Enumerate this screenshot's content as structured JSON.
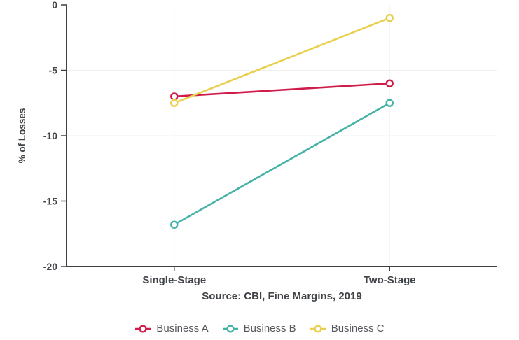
{
  "chart_data": {
    "type": "line",
    "categories": [
      "Single-Stage",
      "Two-Stage"
    ],
    "series": [
      {
        "name": "Business A",
        "color": "#d01c4b",
        "values": [
          -7,
          -6
        ]
      },
      {
        "name": "Business B",
        "color": "#45b2a6",
        "values": [
          -16.8,
          -7.5
        ]
      },
      {
        "name": "Business C",
        "color": "#e8cf4d",
        "values": [
          -7.5,
          -1
        ]
      }
    ],
    "title": "",
    "xlabel": "",
    "ylabel": "% of Losses",
    "ylim": [
      -20,
      0
    ],
    "yticks": [
      0,
      -5,
      -10,
      -15,
      -20
    ],
    "grid": true,
    "legend_position": "bottom"
  },
  "source_note": "Source: CBI, Fine Margins, 2019",
  "colors": {
    "axis": "#404040",
    "grid": "#f0f0f0",
    "tick_label": "#404448",
    "legend_text": "#55585c",
    "marker_fill": "#ffffff",
    "background": "#ffffff"
  }
}
